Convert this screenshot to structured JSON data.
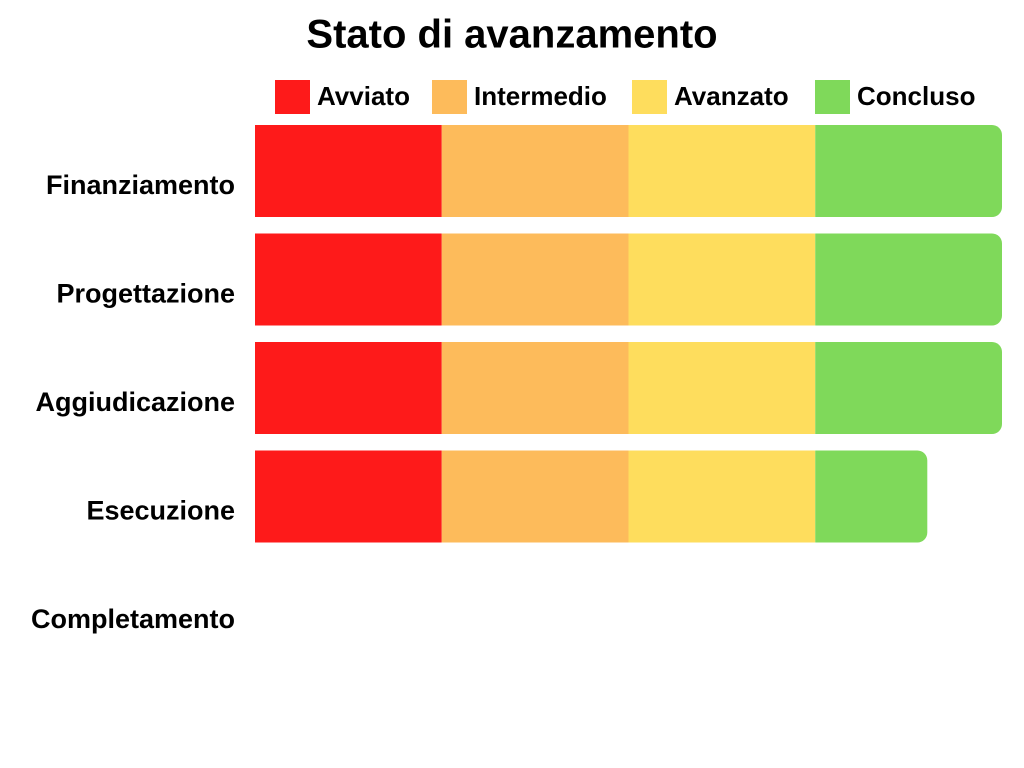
{
  "chart_data": {
    "type": "bar",
    "orientation": "horizontal",
    "stacked": true,
    "title": "Stato di avanzamento",
    "categories": [
      "Finanziamento",
      "Progettazione",
      "Aggiudicazione",
      "Esecuzione",
      "Completamento"
    ],
    "series": [
      {
        "name": "Avviato",
        "color": "#fe1a1a",
        "values": [
          25,
          25,
          25,
          25,
          0
        ]
      },
      {
        "name": "Intermedio",
        "color": "#fdbb5b",
        "values": [
          25,
          25,
          25,
          25,
          0
        ]
      },
      {
        "name": "Avanzato",
        "color": "#fedd5d",
        "values": [
          25,
          25,
          25,
          25,
          0
        ]
      },
      {
        "name": "Concluso",
        "color": "#7fd95a",
        "values": [
          25,
          25,
          25,
          15,
          0
        ]
      }
    ]
  }
}
